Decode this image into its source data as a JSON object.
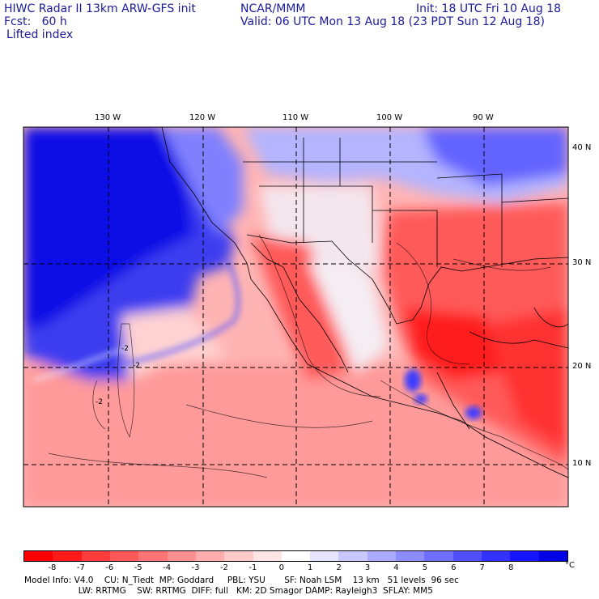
{
  "header": {
    "title_left": "HIWC Radar II 13km ARW-GFS init",
    "title_center": "NCAR/MMM",
    "init": "Init: 18 UTC Fri 10 Aug 18",
    "fcst": "Fcst:   60 h",
    "valid": "Valid: 06 UTC Mon 13 Aug 18 (23 PDT Sun 12 Aug 18)",
    "field": "Lifted index"
  },
  "map": {
    "lon_labels": [
      "130 W",
      "120 W",
      "110 W",
      "100 W",
      "90 W"
    ],
    "lat_labels": [
      "40 N",
      "30 N",
      "20 N",
      "10 N"
    ],
    "contour_labels": [
      "-2",
      "-2",
      "-2"
    ]
  },
  "colorbar": {
    "colors": [
      "#ff0000",
      "#ff1a1a",
      "#ff3b3b",
      "#ff5858",
      "#ff7474",
      "#ff9090",
      "#ffadad",
      "#ffcaca",
      "#ffe6e6",
      "#ffffff",
      "#e6e6ff",
      "#c8c8ff",
      "#aaaaff",
      "#8c8cff",
      "#6e6eff",
      "#5050ff",
      "#3232ff",
      "#1414ff",
      "#0000e6"
    ],
    "ticks": [
      "-8",
      "-7",
      "-6",
      "-5",
      "-4",
      "-3",
      "-2",
      "-1",
      "0",
      "1",
      "2",
      "3",
      "4",
      "5",
      "6",
      "7",
      "8"
    ],
    "unit": "°C"
  },
  "model_info": {
    "line1": "Model Info: V4.0    CU: N_Tiedt  MP: Goddard     PBL: YSU       SF: Noah LSM    13 km   51 levels  96 sec",
    "line2": "                    LW: RRTMG    SW: RRTMG  DIFF: full   KM: 2D Smagor DAMP: Rayleigh3  SFLAY: MM5"
  }
}
